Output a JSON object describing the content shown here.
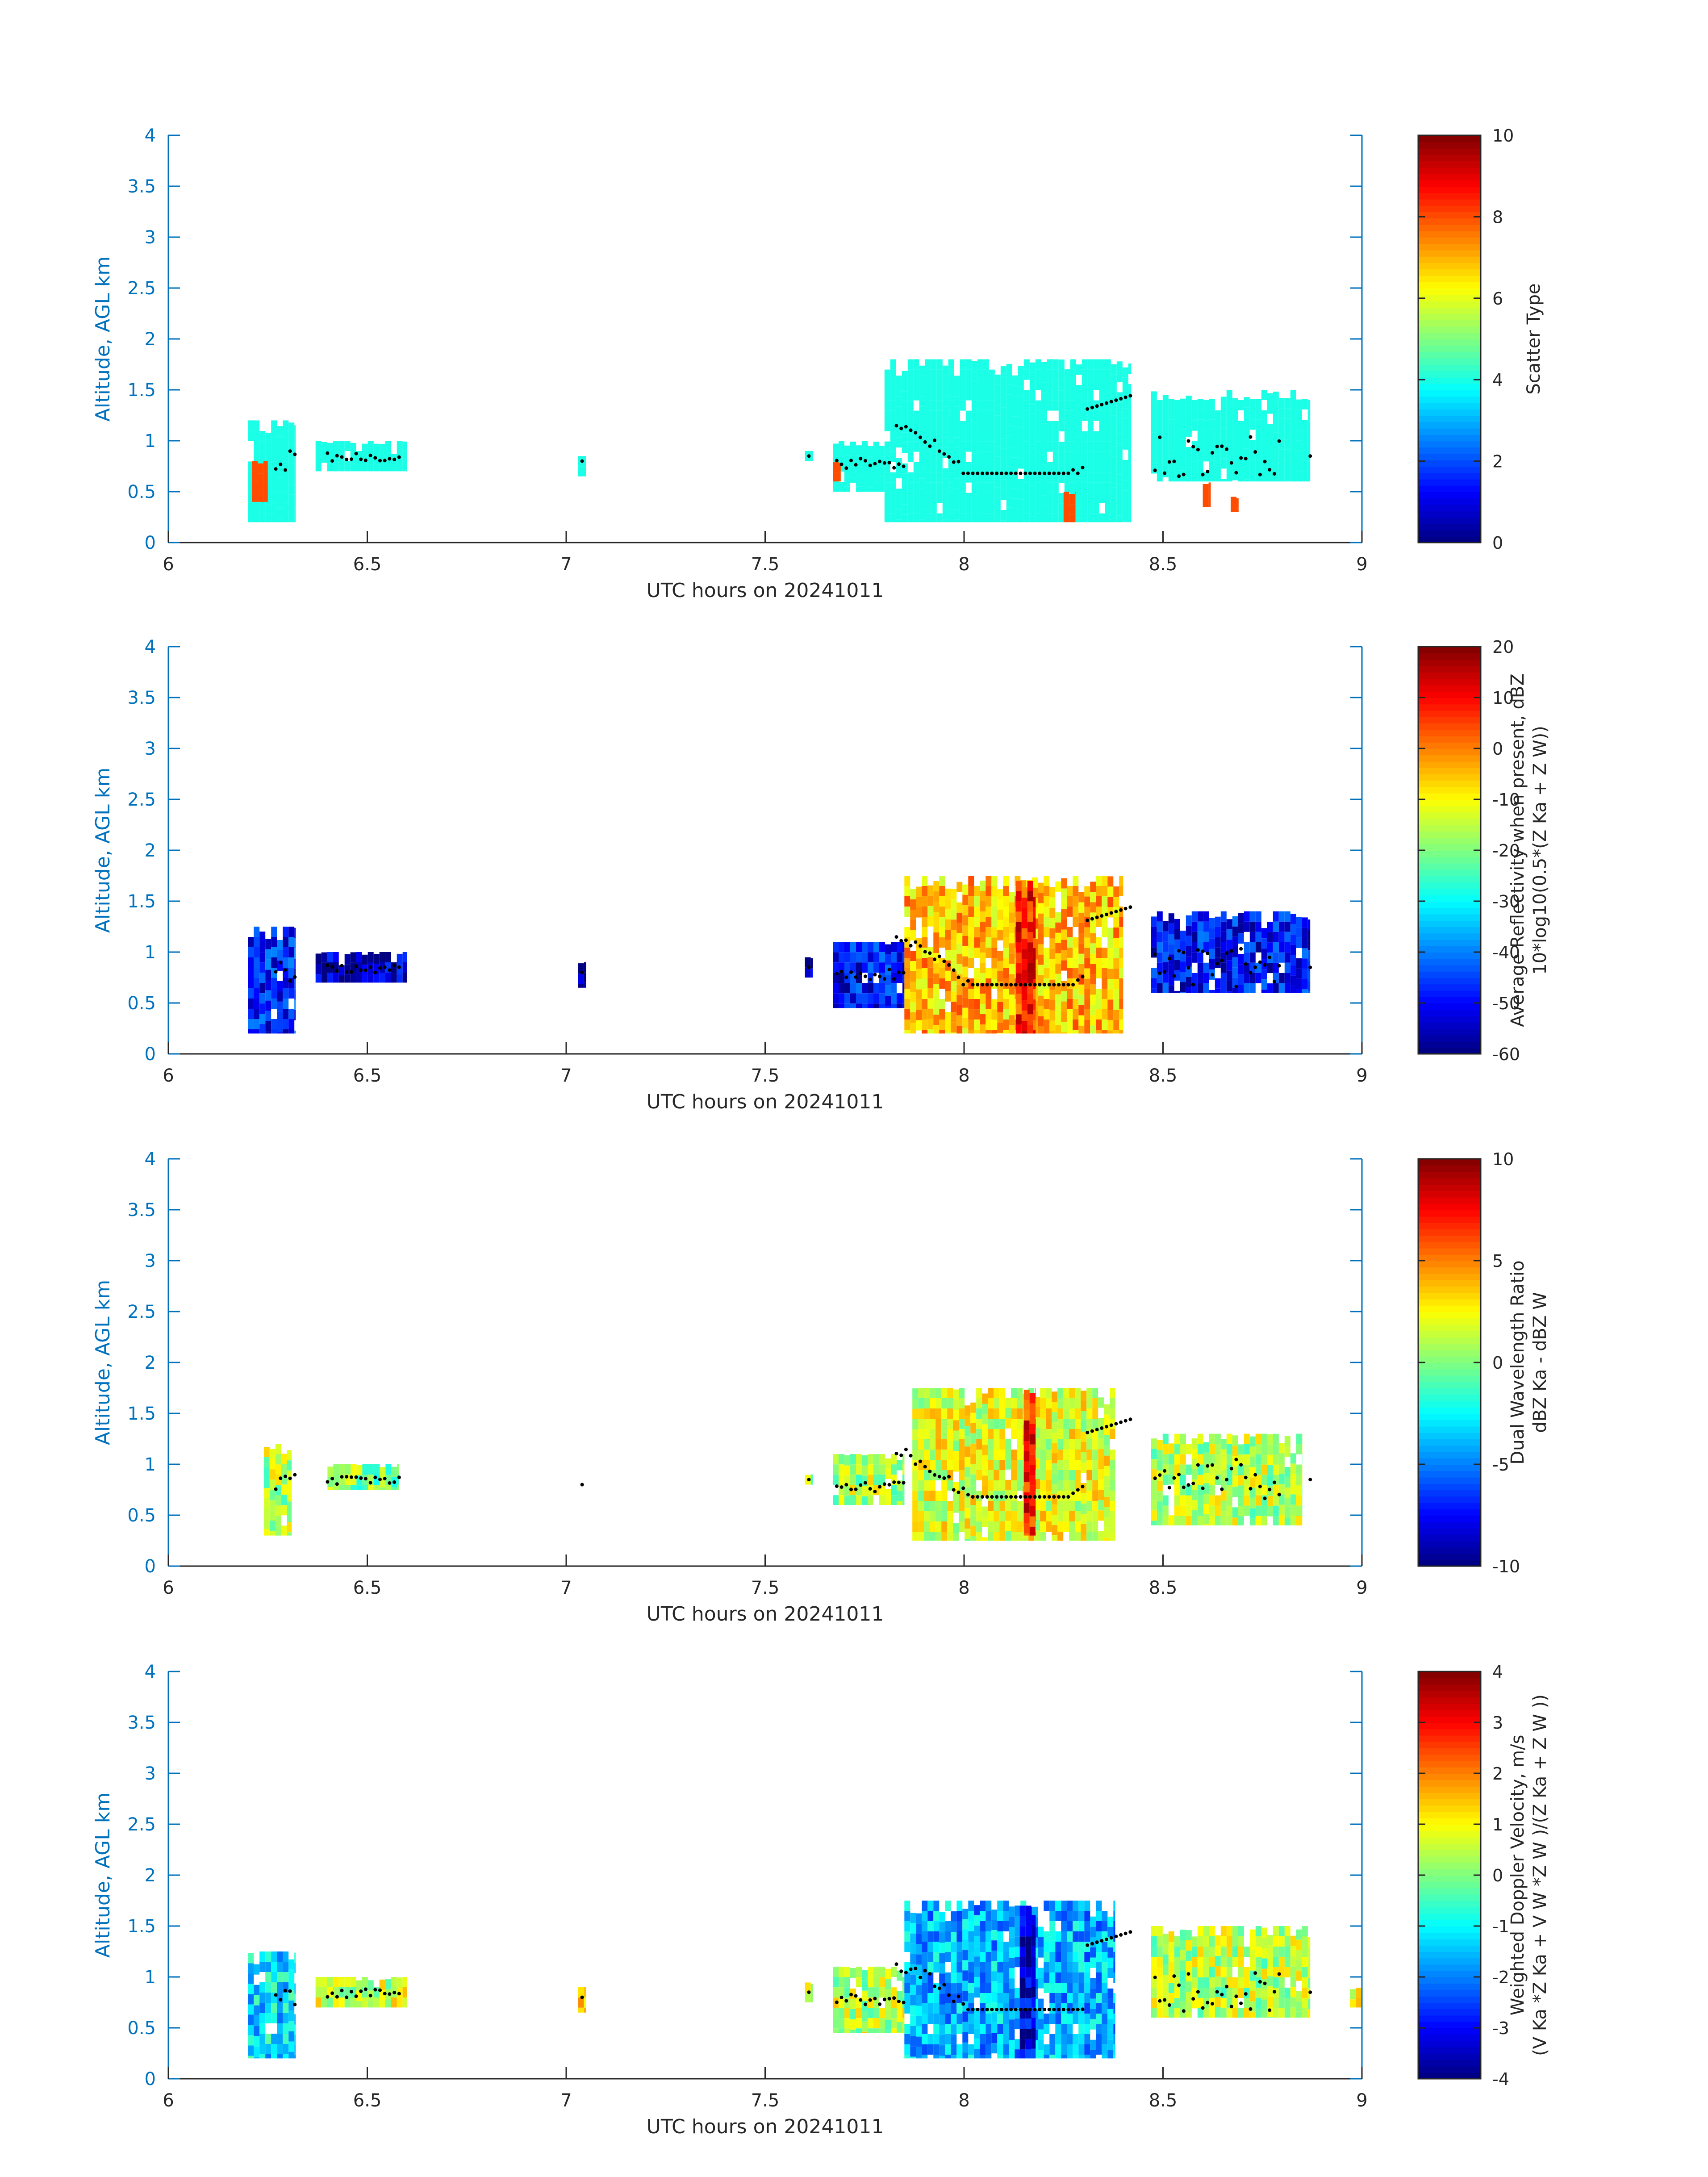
{
  "figure": {
    "xlabel_common": "UTC hours on 20241011",
    "ylabel_common": "Altitude, AGL km",
    "x_ticks": [
      "6",
      "6.5",
      "7",
      "7.5",
      "8",
      "8.5",
      "9"
    ],
    "y_ticks": [
      "0",
      "0.5",
      "1",
      "1.5",
      "2",
      "2.5",
      "3",
      "3.5",
      "4"
    ],
    "axis_color": "#0072BD",
    "text_color": "#262626"
  },
  "chart_data": [
    {
      "type": "heatmap",
      "title": "",
      "xlabel": "UTC hours on 20241011",
      "ylabel": "Altitude, AGL km",
      "xlim": [
        6,
        9
      ],
      "ylim": [
        0,
        4
      ],
      "grid": false,
      "colormap": "jet",
      "colorbar": {
        "label_lines": [
          "Scatter Type"
        ],
        "ticks": [
          "0",
          "2",
          "4",
          "6",
          "8",
          "10"
        ],
        "range": [
          0,
          10
        ]
      },
      "overlay": "black dots marking altitude values, approx 0.7–1.5 km",
      "regions": [
        {
          "x": [
            6.2,
            6.32
          ],
          "y": [
            0.2,
            1.2
          ],
          "value": 4
        },
        {
          "x": [
            6.21,
            6.25
          ],
          "y": [
            0.4,
            0.8
          ],
          "value": 8
        },
        {
          "x": [
            6.37,
            6.6
          ],
          "y": [
            0.7,
            1.0
          ],
          "value": 4
        },
        {
          "x": [
            7.03,
            7.05
          ],
          "y": [
            0.65,
            0.85
          ],
          "value": 4
        },
        {
          "x": [
            7.6,
            7.62
          ],
          "y": [
            0.8,
            0.9
          ],
          "value": 4
        },
        {
          "x": [
            7.67,
            7.8
          ],
          "y": [
            0.5,
            1.0
          ],
          "value": 4
        },
        {
          "x": [
            7.67,
            7.69
          ],
          "y": [
            0.6,
            0.8
          ],
          "value": 8
        },
        {
          "x": [
            7.8,
            8.42
          ],
          "y": [
            0.2,
            1.8
          ],
          "value": 4
        },
        {
          "x": [
            8.25,
            8.28
          ],
          "y": [
            0.2,
            0.5
          ],
          "value": 8
        },
        {
          "x": [
            8.47,
            8.87
          ],
          "y": [
            0.6,
            1.5
          ],
          "value": 4
        },
        {
          "x": [
            8.6,
            8.62
          ],
          "y": [
            0.35,
            0.6
          ],
          "value": 8
        },
        {
          "x": [
            8.67,
            8.69
          ],
          "y": [
            0.3,
            0.45
          ],
          "value": 8
        }
      ]
    },
    {
      "type": "heatmap",
      "title": "",
      "xlabel": "UTC hours on 20241011",
      "ylabel": "Altitude, AGL km",
      "xlim": [
        6,
        9
      ],
      "ylim": [
        0,
        4
      ],
      "grid": false,
      "colormap": "jet",
      "colorbar": {
        "label_lines": [
          "Average Reflectivity when present, dBZ",
          "10*log10(0.5*(Z Ka + Z W))"
        ],
        "ticks": [
          "-60",
          "-50",
          "-40",
          "-30",
          "-20",
          "-10",
          "0",
          "10",
          "20"
        ],
        "range": [
          -60,
          20
        ]
      },
      "regions": [
        {
          "x": [
            6.2,
            6.32
          ],
          "y": [
            0.2,
            1.25
          ],
          "value": -48
        },
        {
          "x": [
            6.37,
            6.6
          ],
          "y": [
            0.7,
            1.0
          ],
          "value": -55
        },
        {
          "x": [
            7.03,
            7.05
          ],
          "y": [
            0.65,
            0.9
          ],
          "value": -58
        },
        {
          "x": [
            7.6,
            7.62
          ],
          "y": [
            0.75,
            0.95
          ],
          "value": -55
        },
        {
          "x": [
            7.67,
            7.85
          ],
          "y": [
            0.45,
            1.1
          ],
          "value": -50
        },
        {
          "x": [
            7.85,
            8.4
          ],
          "y": [
            0.2,
            1.75
          ],
          "value": -5
        },
        {
          "x": [
            8.13,
            8.18
          ],
          "y": [
            0.2,
            1.7
          ],
          "value": 8
        },
        {
          "x": [
            8.47,
            8.87
          ],
          "y": [
            0.6,
            1.4
          ],
          "value": -50
        }
      ]
    },
    {
      "type": "heatmap",
      "title": "",
      "xlabel": "UTC hours on 20241011",
      "ylabel": "Altitude, AGL km",
      "xlim": [
        6,
        9
      ],
      "ylim": [
        0,
        4
      ],
      "grid": false,
      "colormap": "jet",
      "colorbar": {
        "label_lines": [
          "Dual Wavelength Ratio",
          "dBZ Ka - dBZ W"
        ],
        "ticks": [
          "-10",
          "-5",
          "0",
          "5",
          "10"
        ],
        "range": [
          -10,
          10
        ]
      },
      "regions": [
        {
          "x": [
            6.24,
            6.31
          ],
          "y": [
            0.3,
            1.2
          ],
          "value": 1
        },
        {
          "x": [
            6.4,
            6.58
          ],
          "y": [
            0.75,
            1.0
          ],
          "value": 0
        },
        {
          "x": [
            7.6,
            7.62
          ],
          "y": [
            0.8,
            0.9
          ],
          "value": 1
        },
        {
          "x": [
            7.67,
            7.85
          ],
          "y": [
            0.6,
            1.1
          ],
          "value": 1
        },
        {
          "x": [
            7.87,
            8.38
          ],
          "y": [
            0.25,
            1.75
          ],
          "value": 2
        },
        {
          "x": [
            8.15,
            8.18
          ],
          "y": [
            0.3,
            1.75
          ],
          "value": 7
        },
        {
          "x": [
            8.47,
            8.85
          ],
          "y": [
            0.4,
            1.3
          ],
          "value": 1
        }
      ]
    },
    {
      "type": "heatmap",
      "title": "",
      "xlabel": "UTC hours on 20241011",
      "ylabel": "Altitude, AGL km",
      "xlim": [
        6,
        9
      ],
      "ylim": [
        0,
        4
      ],
      "grid": false,
      "colormap": "jet",
      "colorbar": {
        "label_lines": [
          "Weighted Doppler Velocity, m/s",
          "(V Ka *Z Ka + V W *Z W )/(Z Ka + Z W ))"
        ],
        "ticks": [
          "-4",
          "-3",
          "-2",
          "-1",
          "0",
          "1",
          "2",
          "3",
          "4"
        ],
        "range": [
          -4,
          4
        ]
      },
      "regions": [
        {
          "x": [
            6.2,
            6.32
          ],
          "y": [
            0.2,
            1.25
          ],
          "value": -1.2
        },
        {
          "x": [
            6.37,
            6.6
          ],
          "y": [
            0.7,
            1.0
          ],
          "value": 0.6
        },
        {
          "x": [
            7.03,
            7.05
          ],
          "y": [
            0.65,
            0.9
          ],
          "value": 1
        },
        {
          "x": [
            7.6,
            7.62
          ],
          "y": [
            0.75,
            0.95
          ],
          "value": 0.3
        },
        {
          "x": [
            7.67,
            7.85
          ],
          "y": [
            0.45,
            1.1
          ],
          "value": 0.5
        },
        {
          "x": [
            7.85,
            8.38
          ],
          "y": [
            0.2,
            1.75
          ],
          "value": -1.6
        },
        {
          "x": [
            8.14,
            8.18
          ],
          "y": [
            0.2,
            1.7
          ],
          "value": -3.3
        },
        {
          "x": [
            8.47,
            8.87
          ],
          "y": [
            0.6,
            1.5
          ],
          "value": 0.4
        },
        {
          "x": [
            8.97,
            9.0
          ],
          "y": [
            0.7,
            0.9
          ],
          "value": 1
        }
      ]
    }
  ]
}
